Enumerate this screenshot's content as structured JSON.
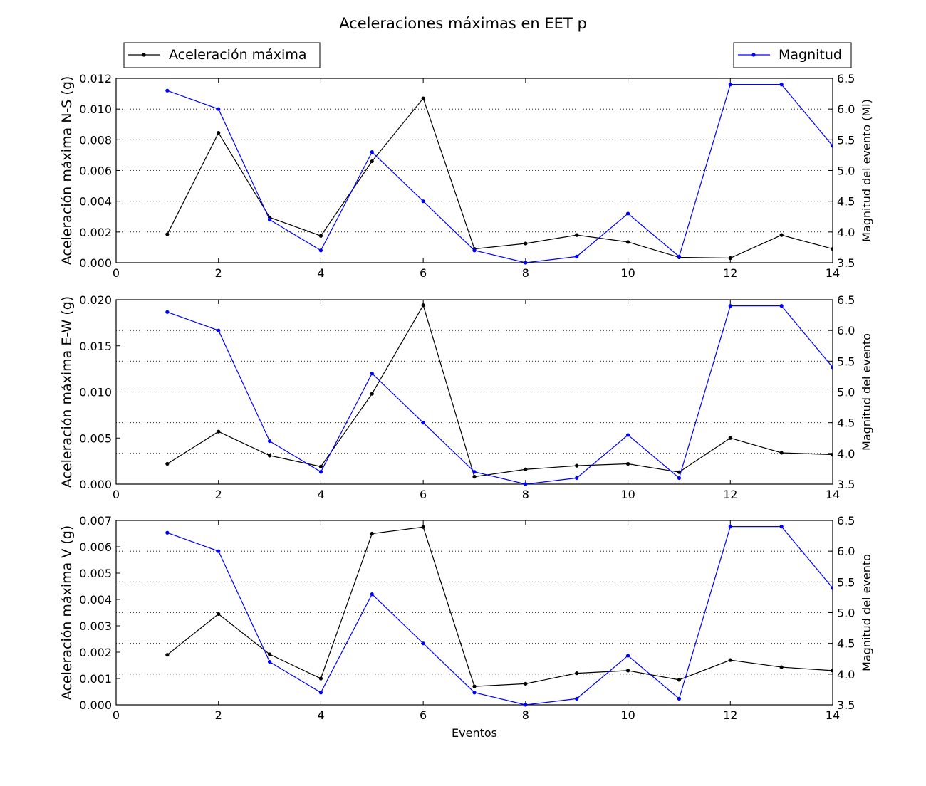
{
  "figure": {
    "title": "Aceleraciones máximas en EET p",
    "xlabel": "Eventos",
    "legend_left": "Aceleración máxima",
    "legend_right": "Magnitud"
  },
  "colors": {
    "acceleration": "#000000",
    "magnitude": "#0000ff",
    "grid": "#000000",
    "background": "#ffffff"
  },
  "chart_data": [
    {
      "type": "line",
      "xlim": [
        0,
        14
      ],
      "xticks": [
        0,
        2,
        4,
        6,
        8,
        10,
        12,
        14
      ],
      "ylabel": "Aceleración máxima N-S (g)",
      "ylim": [
        0,
        0.012
      ],
      "yticks": [
        "0.000",
        "0.002",
        "0.004",
        "0.006",
        "0.008",
        "0.010",
        "0.012"
      ],
      "y2label": "Magnitud del evento (Ml)",
      "y2lim": [
        3.5,
        6.5
      ],
      "y2ticks": [
        "3.5",
        "4.0",
        "4.5",
        "5.0",
        "5.5",
        "6.0",
        "6.5"
      ],
      "grid": "y-dotted",
      "x": [
        1,
        2,
        3,
        4,
        5,
        6,
        7,
        8,
        9,
        10,
        11,
        12,
        13,
        14
      ],
      "series": [
        {
          "name": "Aceleración máxima",
          "axis": "left",
          "values": [
            0.00185,
            0.00845,
            0.00295,
            0.00175,
            0.0066,
            0.0107,
            0.0009,
            0.00125,
            0.0018,
            0.00135,
            0.00035,
            0.0003,
            0.0018,
            0.0009
          ]
        },
        {
          "name": "Magnitud",
          "axis": "right",
          "values": [
            6.3,
            6.0,
            4.2,
            3.7,
            5.3,
            4.5,
            3.7,
            3.5,
            3.6,
            4.3,
            3.6,
            6.4,
            6.4,
            5.4
          ]
        }
      ]
    },
    {
      "type": "line",
      "xlim": [
        0,
        14
      ],
      "xticks": [
        0,
        2,
        4,
        6,
        8,
        10,
        12,
        14
      ],
      "ylabel": "Aceleración máxima E-W (g)",
      "ylim": [
        0,
        0.02
      ],
      "yticks": [
        "0.000",
        "0.005",
        "0.010",
        "0.015",
        "0.020"
      ],
      "y2label": "Magnitud del evento",
      "y2lim": [
        3.5,
        6.5
      ],
      "y2ticks": [
        "3.5",
        "4.0",
        "4.5",
        "5.0",
        "5.5",
        "6.0",
        "6.5"
      ],
      "grid": "y-dotted",
      "x": [
        1,
        2,
        3,
        4,
        5,
        6,
        7,
        8,
        9,
        10,
        11,
        12,
        13,
        14
      ],
      "series": [
        {
          "name": "Aceleración máxima",
          "axis": "left",
          "values": [
            0.0022,
            0.0057,
            0.0031,
            0.0019,
            0.0098,
            0.0194,
            0.0008,
            0.0016,
            0.002,
            0.0022,
            0.0013,
            0.005,
            0.0034,
            0.0032
          ]
        },
        {
          "name": "Magnitud",
          "axis": "right",
          "values": [
            6.3,
            6.0,
            4.2,
            3.7,
            5.3,
            4.5,
            3.7,
            3.5,
            3.6,
            4.3,
            3.6,
            6.4,
            6.4,
            5.4
          ]
        }
      ]
    },
    {
      "type": "line",
      "xlim": [
        0,
        14
      ],
      "xticks": [
        0,
        2,
        4,
        6,
        8,
        10,
        12,
        14
      ],
      "ylabel": "Aceleración máxima V (g)",
      "ylim": [
        0,
        0.007
      ],
      "yticks": [
        "0.000",
        "0.001",
        "0.002",
        "0.003",
        "0.004",
        "0.005",
        "0.006",
        "0.007"
      ],
      "y2label": "Magnitud del evento",
      "y2lim": [
        3.5,
        6.5
      ],
      "y2ticks": [
        "3.5",
        "4.0",
        "4.5",
        "5.0",
        "5.5",
        "6.0",
        "6.5"
      ],
      "grid": "y-dotted",
      "x": [
        1,
        2,
        3,
        4,
        5,
        6,
        7,
        8,
        9,
        10,
        11,
        12,
        13,
        14
      ],
      "series": [
        {
          "name": "Aceleración máxima",
          "axis": "left",
          "values": [
            0.0019,
            0.00345,
            0.00192,
            0.001,
            0.0065,
            0.00675,
            0.0007,
            0.0008,
            0.0012,
            0.0013,
            0.00095,
            0.0017,
            0.00143,
            0.0013
          ]
        },
        {
          "name": "Magnitud",
          "axis": "right",
          "values": [
            6.3,
            6.0,
            4.2,
            3.7,
            5.3,
            4.5,
            3.7,
            3.5,
            3.6,
            4.3,
            3.6,
            6.4,
            6.4,
            5.4
          ]
        }
      ]
    }
  ]
}
